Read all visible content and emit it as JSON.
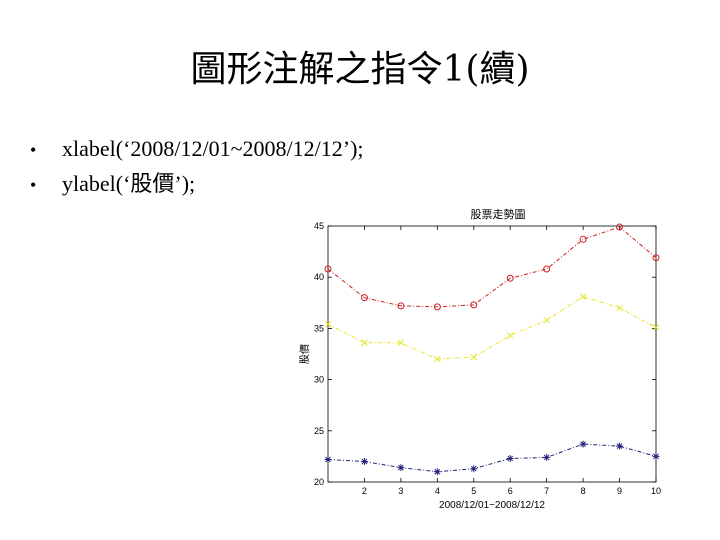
{
  "slide": {
    "title": "圖形注解之指令1(續)",
    "bullets": [
      "xlabel(‘2008/12/01~2008/12/12’);",
      "ylabel(‘股價’);"
    ],
    "bullet_symbol": "•"
  },
  "chart_data": {
    "type": "line",
    "title": "股票走勢圖",
    "xlabel": "2008/12/01~2008/12/12",
    "ylabel": "股價",
    "x": [
      1,
      2,
      3,
      4,
      5,
      6,
      7,
      8,
      9,
      10
    ],
    "x_ticks": [
      2,
      3,
      4,
      5,
      6,
      7,
      8,
      9,
      10
    ],
    "xlim": [
      1,
      10
    ],
    "ylim": [
      20,
      45
    ],
    "y_ticks": [
      20,
      25,
      30,
      35,
      40,
      45
    ],
    "grid": false,
    "series": [
      {
        "values": [
          40.8,
          38.0,
          37.2,
          37.1,
          37.3,
          39.9,
          40.8,
          43.7,
          44.9,
          41.9
        ],
        "color": "#cc2222",
        "marker": "circle",
        "line": "dashdot"
      },
      {
        "values": [
          35.4,
          33.6,
          33.6,
          32.0,
          32.2,
          34.3,
          35.8,
          38.1,
          37.0,
          35.1
        ],
        "color": "#e6e62a",
        "marker": "x",
        "line": "dashdot"
      },
      {
        "values": [
          22.2,
          22.0,
          21.4,
          21.0,
          21.3,
          22.3,
          22.4,
          23.7,
          23.5,
          22.5
        ],
        "color": "#22227a",
        "marker": "star",
        "line": "dashdot"
      }
    ]
  }
}
